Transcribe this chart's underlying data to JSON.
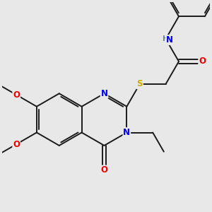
{
  "background_color": "#e8e8e8",
  "bond_color": "#1a1a1a",
  "atom_colors": {
    "N": "#0000ee",
    "O": "#ee0000",
    "S": "#ccaa00",
    "H": "#668899",
    "C": "#1a1a1a"
  },
  "figsize": [
    3.0,
    3.0
  ],
  "dpi": 100
}
